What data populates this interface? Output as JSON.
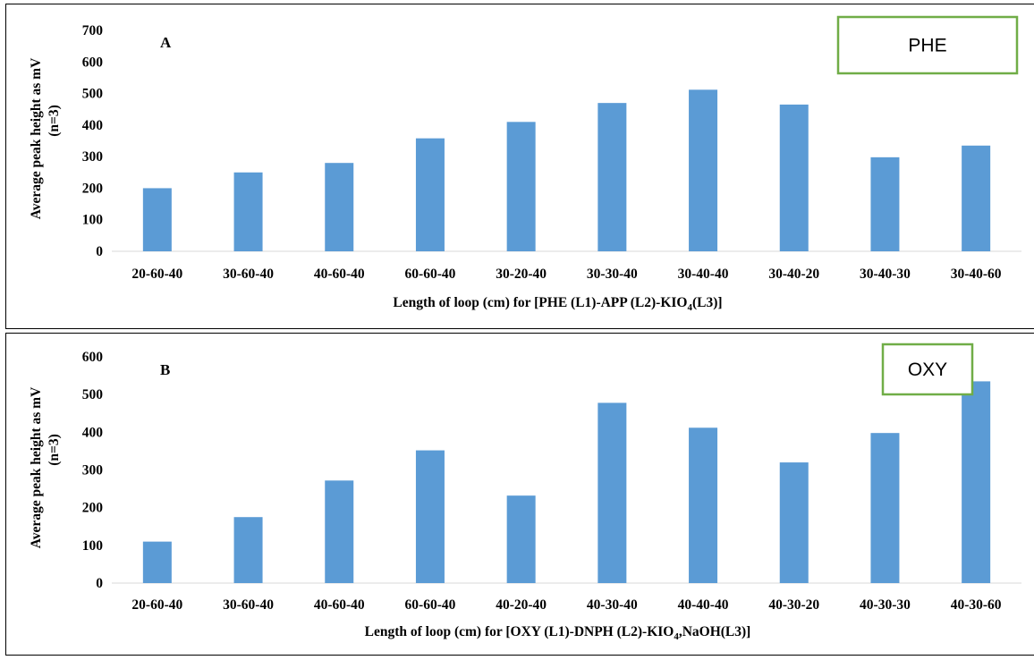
{
  "chart_data": [
    {
      "type": "bar",
      "panel_letter": "A",
      "label_box": "PHE",
      "categories": [
        "20-60-40",
        "30-60-40",
        "40-60-40",
        "60-60-40",
        "30-20-40",
        "30-30-40",
        "30-40-40",
        "30-40-20",
        "30-40-30",
        "30-40-60"
      ],
      "values": [
        200,
        250,
        280,
        358,
        410,
        470,
        512,
        465,
        298,
        335
      ],
      "ylim": [
        0,
        700
      ],
      "yticks": [
        "0",
        "100",
        "200",
        "300",
        "400",
        "500",
        "600",
        "700"
      ],
      "ylabel_line1": "Average peak height as mV",
      "ylabel_line2": "(n=3)",
      "xlabel_pre": "Length of loop (cm) for [PHE (L1)-APP (L2)-KIO",
      "xlabel_sub": "4",
      "xlabel_post": "(L3)]",
      "grid": false,
      "legend": "none",
      "bar_color": "#5b9bd5",
      "box_color": "#70ad47"
    },
    {
      "type": "bar",
      "panel_letter": "B",
      "label_box": "OXY",
      "categories": [
        "20-60-40",
        "30-60-40",
        "40-60-40",
        "60-60-40",
        "40-20-40",
        "40-30-40",
        "40-40-40",
        "40-30-20",
        "40-30-30",
        "40-30-60"
      ],
      "values": [
        110,
        175,
        272,
        352,
        232,
        478,
        412,
        320,
        398,
        535
      ],
      "ylim": [
        0,
        600
      ],
      "yticks": [
        "0",
        "100",
        "200",
        "300",
        "400",
        "500",
        "600"
      ],
      "ylabel_line1": "Average peak height as mV",
      "ylabel_line2": "(n=3)",
      "xlabel_pre": "Length of loop (cm) for [OXY (L1)-DNPH (L2)-KIO",
      "xlabel_sub": "4",
      "xlabel_post": ",NaOH(L3)]",
      "grid": false,
      "legend": "none",
      "bar_color": "#5b9bd5",
      "box_color": "#70ad47"
    }
  ]
}
